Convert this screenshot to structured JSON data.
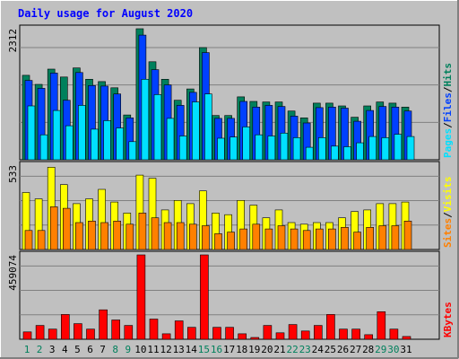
{
  "title": "Daily usage for August 2020",
  "colors": {
    "title": "#0000ff",
    "hits": "#00805c",
    "files": "#0040ff",
    "pages": "#00e0ff",
    "visits": "#ffff00",
    "sites": "#ff8000",
    "kbytes": "#ff0000",
    "weekend": "#00805c",
    "weekday": "#000000",
    "panel": "#c0c0c0",
    "grid": "#808080"
  },
  "chart_data": {
    "type": "bar",
    "categories": [
      "1",
      "2",
      "3",
      "4",
      "5",
      "6",
      "7",
      "8",
      "9",
      "10",
      "11",
      "12",
      "13",
      "14",
      "15",
      "16",
      "17",
      "18",
      "19",
      "20",
      "21",
      "22",
      "23",
      "24",
      "25",
      "26",
      "27",
      "28",
      "29",
      "30",
      "31"
    ],
    "weekend_days": [
      "1",
      "2",
      "8",
      "9",
      "15",
      "16",
      "22",
      "23",
      "29",
      "30"
    ],
    "panels": [
      {
        "ymax_label": "2312",
        "ylim": [
          0,
          2312
        ],
        "legend": [
          {
            "text": "Hits",
            "color": "#00805c"
          },
          {
            "text": "/",
            "color": "#000000"
          },
          {
            "text": "Files",
            "color": "#0040ff"
          },
          {
            "text": "/",
            "color": "#000000"
          },
          {
            "text": "Pages",
            "color": "#00e0ff"
          }
        ],
        "series": [
          {
            "name": "Hits",
            "color": "#00805c",
            "values": [
              1490,
              1330,
              1600,
              1460,
              1620,
              1420,
              1380,
              1270,
              790,
              2312,
              1730,
              1420,
              1050,
              1250,
              1980,
              780,
              780,
              1110,
              1030,
              1020,
              1020,
              860,
              740,
              1000,
              1000,
              950,
              750,
              950,
              1020,
              1000,
              930
            ]
          },
          {
            "name": "Files",
            "color": "#0040ff",
            "values": [
              1400,
              1260,
              1530,
              1050,
              1540,
              1310,
              1300,
              1160,
              740,
              2200,
              1590,
              1320,
              960,
              1190,
              1890,
              730,
              730,
              1030,
              930,
              960,
              940,
              770,
              650,
              920,
              930,
              910,
              680,
              870,
              940,
              930,
              860
            ]
          },
          {
            "name": "Pages",
            "color": "#00e0ff",
            "values": [
              950,
              440,
              870,
              600,
              960,
              540,
              690,
              560,
              320,
              1420,
              1150,
              730,
              420,
              1020,
              1160,
              380,
              400,
              580,
              440,
              420,
              470,
              390,
              220,
              390,
              240,
              230,
              300,
              410,
              390,
              450,
              410
            ]
          }
        ]
      },
      {
        "ymax_label": "533",
        "ylim": [
          0,
          533
        ],
        "legend": [
          {
            "text": "Visits",
            "color": "#ffff00"
          },
          {
            "text": "/",
            "color": "#000000"
          },
          {
            "text": "Sites",
            "color": "#ff8000"
          }
        ],
        "series": [
          {
            "name": "Visits",
            "color": "#ffff00",
            "values": [
              360,
              320,
              520,
              410,
              290,
              320,
              380,
              300,
              230,
              470,
              450,
              250,
              310,
              290,
              370,
              230,
              220,
              310,
              280,
              200,
              250,
              170,
              160,
              170,
              170,
              200,
              240,
              250,
              290,
              290,
              300
            ]
          },
          {
            "name": "Sites",
            "color": "#ff8000",
            "values": [
              120,
              120,
              270,
              260,
              170,
              180,
              170,
              180,
              160,
              230,
              200,
              170,
              170,
              160,
              150,
              100,
              110,
              130,
              160,
              130,
              150,
              130,
              120,
              130,
              130,
              140,
              110,
              140,
              150,
              150,
              180
            ]
          }
        ]
      },
      {
        "ymax_label": "459074",
        "ylim": [
          0,
          459074
        ],
        "legend": [
          {
            "text": "KBytes",
            "color": "#ff0000"
          }
        ],
        "series": [
          {
            "name": "KBytes",
            "color": "#ff0000",
            "values": [
              40000,
              75000,
              55000,
              135000,
              85000,
              55000,
              160000,
              105000,
              75000,
              459074,
              110000,
              30000,
              100000,
              65000,
              459074,
              65000,
              65000,
              30000,
              10000,
              75000,
              35000,
              80000,
              45000,
              75000,
              135000,
              55000,
              55000,
              25000,
              150000,
              55000,
              15000
            ]
          }
        ]
      }
    ]
  }
}
